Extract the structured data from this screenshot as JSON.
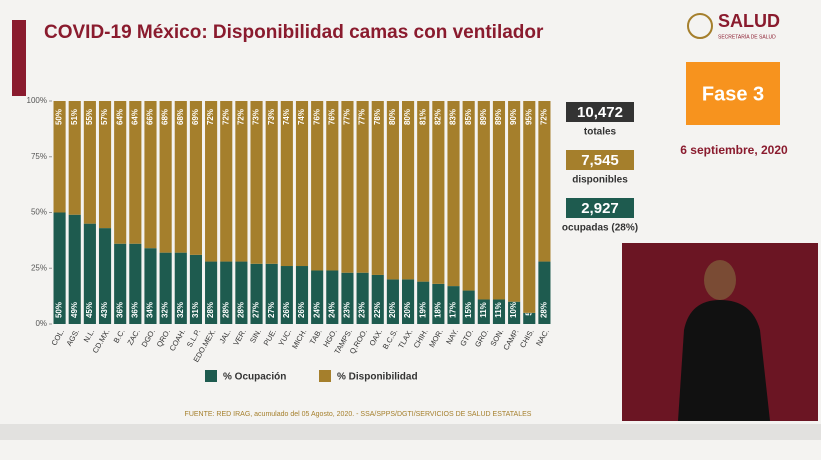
{
  "header": {
    "logo": "SALUD",
    "logo_sub": "SECRETARÍA DE SALUD",
    "phase": "Fase 3",
    "date": "6 septiembre, 2020"
  },
  "stats": [
    {
      "value": "10,472",
      "label": "totales",
      "color": "#333333"
    },
    {
      "value": "7,545",
      "label": "disponibles",
      "color": "#a57f2c"
    },
    {
      "value": "2,927",
      "label": "ocupadas (28%)",
      "color": "#1e5b4f"
    }
  ],
  "chart_data": {
    "type": "stacked_bar",
    "title": "COVID-19 México: Disponibilidad camas con ventilador",
    "categories": [
      "COL.",
      "AGS.",
      "N.L.",
      "CD.MX.",
      "B.C.",
      "ZAC.",
      "DGO.",
      "QRO.",
      "COAH.",
      "S.L.P.",
      "EDO.MEX.",
      "JAL.",
      "VER.",
      "SIN.",
      "PUE.",
      "YUC.",
      "MICH.",
      "TAB.",
      "HGO.",
      "TAMPS.",
      "Q.ROO.",
      "OAX.",
      "B.C.S.",
      "TLAX.",
      "CHIH.",
      "MOR.",
      "NAY.",
      "GTO.",
      "GRO.",
      "SON.",
      "CAMP.",
      "CHIS.",
      "NAC."
    ],
    "series": [
      {
        "name": "% Ocupación",
        "color": "#1e5b4f",
        "values": [
          50,
          49,
          45,
          43,
          36,
          36,
          34,
          32,
          32,
          31,
          28,
          28,
          28,
          27,
          27,
          26,
          26,
          24,
          24,
          23,
          23,
          22,
          20,
          20,
          19,
          18,
          17,
          15,
          11,
          11,
          10,
          5,
          28
        ],
        "value_labels": [
          "50%",
          "49%",
          "45%",
          "43%",
          "36%",
          "36%",
          "34%",
          "32%",
          "32%",
          "31%",
          "28%",
          "28%",
          "28%",
          "27%",
          "27%",
          "26%",
          "26%",
          "24%",
          "24%",
          "23%",
          "23%",
          "22%",
          "20%",
          "20%",
          "19%",
          "18%",
          "17%",
          "15%",
          "11%",
          "11%",
          "10%",
          "5%",
          "28%"
        ]
      },
      {
        "name": "% Disponibilidad",
        "color": "#a57f2c",
        "values": [
          50,
          51,
          55,
          57,
          64,
          64,
          66,
          68,
          68,
          69,
          72,
          72,
          72,
          73,
          73,
          74,
          74,
          76,
          76,
          77,
          77,
          78,
          80,
          80,
          81,
          82,
          83,
          85,
          89,
          89,
          90,
          95,
          72
        ],
        "value_labels": [
          "50%",
          "51%",
          "55%",
          "57%",
          "64%",
          "64%",
          "66%",
          "68%",
          "68%",
          "69%",
          "72%",
          "72%",
          "72%",
          "73%",
          "73%",
          "74%",
          "74%",
          "76%",
          "76%",
          "77%",
          "77%",
          "78%",
          "80%",
          "80%",
          "81%",
          "82%",
          "83%",
          "85%",
          "89%",
          "89%",
          "90%",
          "95%",
          "72%"
        ]
      }
    ],
    "ylim": [
      0,
      100
    ],
    "yticks": [
      {
        "value": 0,
        "label": "0%"
      },
      {
        "value": 25,
        "label": "25%"
      },
      {
        "value": 50,
        "label": "50%"
      },
      {
        "value": 75,
        "label": "75%"
      },
      {
        "value": 100,
        "label": "100%"
      }
    ],
    "source": "FUENTE: RED IRAG, acumulado del 05 Agosto, 2020.  -  SSA/SPPS/DGTI/SERVICIOS DE SALUD ESTATALES"
  }
}
